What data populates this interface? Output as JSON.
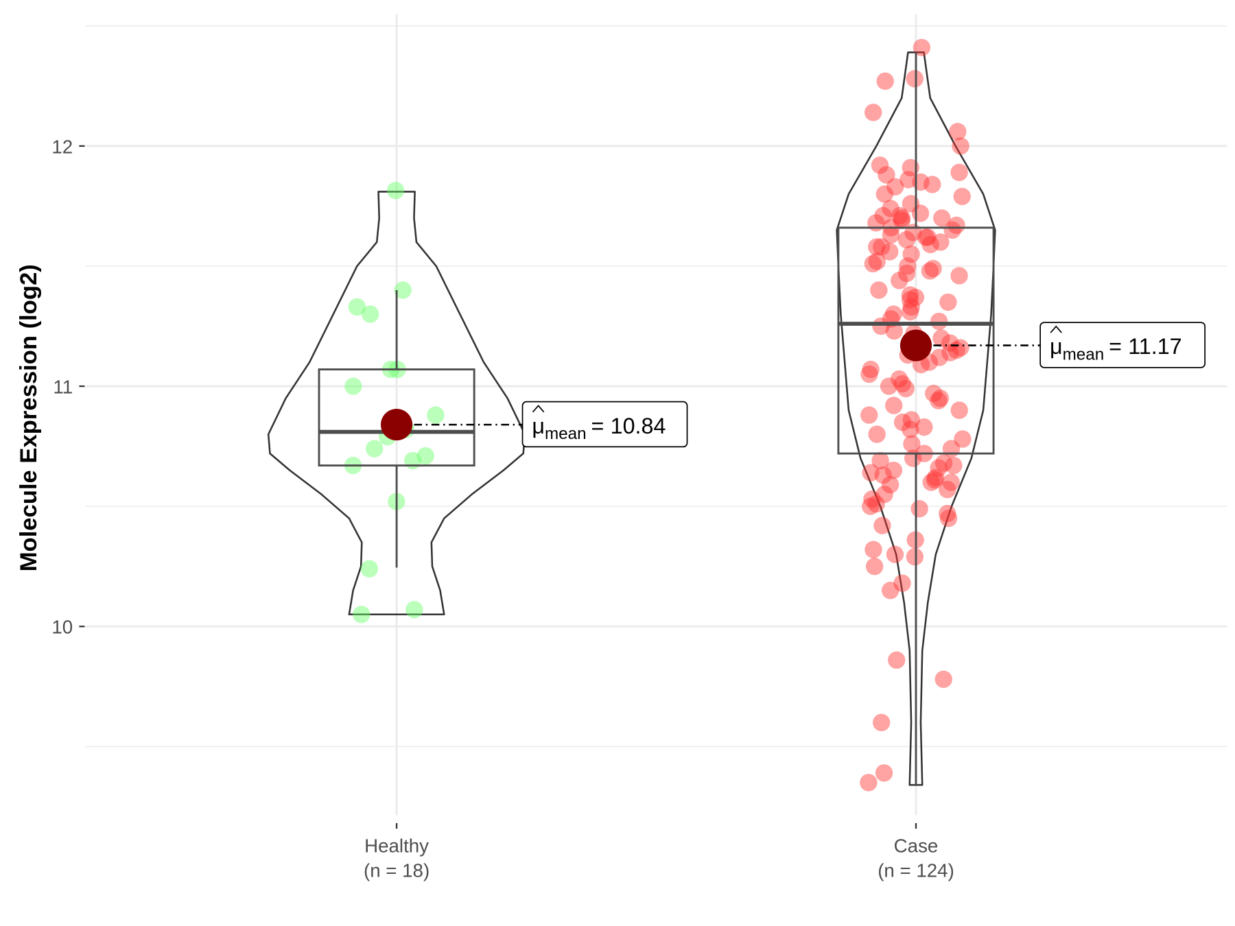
{
  "chart_data": {
    "type": "violin",
    "title": "",
    "xlabel": "",
    "ylabel": "Molecule Expression (log2)",
    "ylim": [
      9.2,
      12.55
    ],
    "y_ticks": [
      "10",
      "11",
      "12"
    ],
    "grid": true,
    "groups": [
      {
        "name": "Healthy",
        "n_label": "(n = 18)",
        "color": "#66ff66",
        "mean": 10.84,
        "mean_label": "10.84",
        "box": {
          "q1": 10.67,
          "median": 10.81,
          "q3": 11.07,
          "whisker_low": 10.245,
          "whisker_high": 11.4
        },
        "range": [
          10.05,
          11.81
        ],
        "values": [
          11.815,
          11.4,
          11.33,
          11.3,
          11.07,
          11.07,
          11.0,
          10.88,
          10.82,
          10.79,
          10.74,
          10.71,
          10.69,
          10.67,
          10.52,
          10.24,
          10.07,
          10.05
        ]
      },
      {
        "name": "Case",
        "n_label": "(n = 124)",
        "color": "#ff3333",
        "mean": 11.17,
        "mean_label": "11.17",
        "box": {
          "q1": 10.72,
          "median": 11.26,
          "q3": 11.66,
          "whisker_low": 9.34,
          "whisker_high": 12.39
        },
        "range": [
          9.34,
          12.39
        ],
        "values": [
          12.41,
          12.28,
          12.27,
          12.14,
          12.06,
          12.0,
          11.92,
          11.91,
          11.89,
          11.88,
          11.86,
          11.85,
          11.84,
          11.83,
          11.8,
          11.79,
          11.76,
          11.74,
          11.72,
          11.71,
          11.71,
          11.7,
          11.7,
          11.69,
          11.68,
          11.67,
          11.66,
          11.65,
          11.64,
          11.63,
          11.62,
          11.61,
          11.6,
          11.59,
          11.58,
          11.56,
          11.55,
          11.52,
          11.51,
          11.5,
          11.49,
          11.48,
          11.46,
          11.44,
          11.38,
          11.37,
          11.36,
          11.35,
          11.33,
          11.31,
          11.3,
          11.28,
          11.27,
          11.25,
          11.23,
          11.2,
          11.18,
          11.16,
          11.15,
          11.14,
          11.12,
          11.1,
          11.09,
          11.07,
          11.03,
          11.01,
          11.0,
          10.99,
          10.97,
          10.94,
          10.92,
          10.9,
          10.88,
          10.85,
          10.83,
          10.82,
          10.8,
          10.78,
          10.76,
          10.74,
          10.72,
          10.7,
          10.69,
          10.68,
          10.67,
          10.65,
          10.64,
          10.63,
          10.62,
          10.61,
          10.6,
          10.6,
          10.59,
          10.57,
          10.55,
          10.53,
          10.51,
          10.5,
          10.49,
          10.47,
          10.45,
          10.42,
          10.36,
          10.32,
          10.3,
          10.29,
          10.25,
          10.18,
          10.15,
          9.86,
          9.78,
          9.6,
          9.39,
          9.35,
          11.62,
          11.58,
          11.47,
          11.4,
          11.22,
          11.13,
          11.05,
          10.95,
          10.86,
          10.66
        ]
      }
    ],
    "mean_symbol": "μ",
    "mean_subscript": "mean",
    "mean_equals": "=",
    "mean_color": "#8b0000"
  }
}
